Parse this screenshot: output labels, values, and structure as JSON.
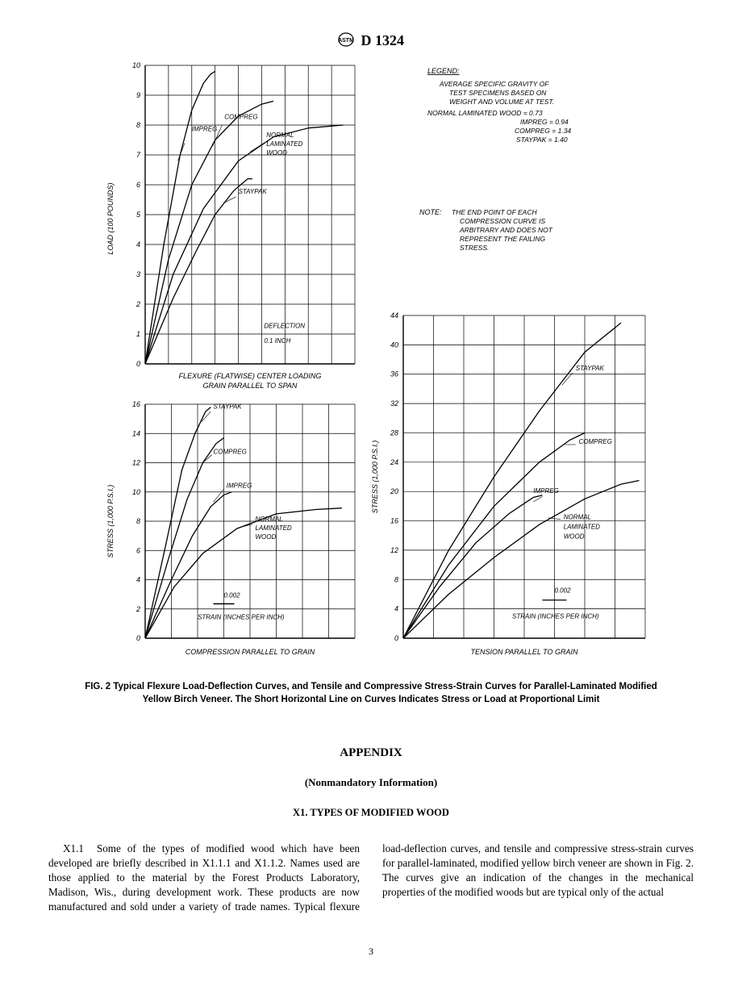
{
  "header": {
    "standard_code": "D 1324"
  },
  "figure": {
    "caption": "FIG. 2 Typical Flexure Load-Deflection Curves, and Tensile and Compressive Stress-Strain Curves for Parallel-Laminated Modified Yellow Birch Veneer. The Short Horizontal Line on Curves Indicates Stress or Load at Proportional Limit",
    "legend": {
      "title": "LEGEND:",
      "line1": "AVERAGE SPECIFIC GRAVITY OF",
      "line2": "TEST SPECIMENS BASED ON",
      "line3": "WEIGHT AND VOLUME AT TEST.",
      "items": [
        "NORMAL LAMINATED WOOD = 0.73",
        "IMPREG = 0.94",
        "COMPREG = 1.34",
        "STAYPAK = 1.40"
      ]
    },
    "note": {
      "label": "NOTE:",
      "text1": "THE END POINT OF EACH",
      "text2": "COMPRESSION CURVE IS",
      "text3": "ARBITRARY AND DOES NOT",
      "text4": "REPRESENT THE FAILING",
      "text5": "STRESS."
    },
    "chart1": {
      "type": "line",
      "title": "FLEXURE (FLATWISE) CENTER LOADING",
      "subtitle": "GRAIN PARALLEL TO SPAN",
      "xlabel": "DEFLECTION",
      "xunit": "0.1 INCH",
      "ylabel": "LOAD (100 POUNDS)",
      "xlim": [
        0,
        9
      ],
      "ylim": [
        0,
        10
      ],
      "xtick_step": 1,
      "ytick_step": 1,
      "curve_labels": [
        "IMPREG",
        "COMPREG",
        "NORMAL LAMINATED WOOD",
        "STAYPAK"
      ],
      "curves": {
        "impreg": {
          "x": [
            0,
            0.8,
            1.5,
            2.0,
            2.5,
            2.8,
            3.0
          ],
          "y": [
            0,
            4.0,
            7.0,
            8.5,
            9.4,
            9.7,
            9.8
          ]
        },
        "compreg": {
          "x": [
            0,
            1.0,
            2.0,
            3.0,
            4.0,
            5.0,
            5.5
          ],
          "y": [
            0,
            3.5,
            6.0,
            7.5,
            8.3,
            8.7,
            8.8
          ]
        },
        "normal": {
          "x": [
            0,
            1.2,
            2.5,
            4.0,
            5.5,
            7.0,
            8.5
          ],
          "y": [
            0,
            3.0,
            5.2,
            6.8,
            7.6,
            7.9,
            8.0
          ]
        },
        "staypak": {
          "x": [
            0,
            1.2,
            2.2,
            3.0,
            3.8,
            4.4,
            4.6
          ],
          "y": [
            0,
            2.2,
            3.8,
            5.0,
            5.8,
            6.2,
            6.2
          ]
        }
      },
      "stroke": "#000000",
      "grid_color": "#000000"
    },
    "chart2": {
      "type": "line",
      "title": "COMPRESSION PARALLEL TO GRAIN",
      "xlabel": "STRAIN (INCHES PER INCH)",
      "xmarker": "0.002",
      "ylabel": "STRESS (1,000 P.S.I.)",
      "xlim": [
        0,
        8
      ],
      "ylim": [
        0,
        16
      ],
      "xtick_step": 1,
      "ytick_step": 2,
      "curve_labels": [
        "STAYPAK",
        "COMPREG",
        "IMPREG",
        "NORMAL LAMINATED WOOD"
      ],
      "curves": {
        "staypak": {
          "x": [
            0,
            0.8,
            1.4,
            1.9,
            2.3,
            2.5
          ],
          "y": [
            0,
            6.5,
            11.5,
            14.0,
            15.5,
            15.8
          ]
        },
        "compreg": {
          "x": [
            0,
            0.9,
            1.6,
            2.2,
            2.7,
            3.0
          ],
          "y": [
            0,
            5.5,
            9.5,
            12.0,
            13.3,
            13.7
          ]
        },
        "impreg": {
          "x": [
            0,
            1.0,
            1.8,
            2.5,
            3.0,
            3.3
          ],
          "y": [
            0,
            4.0,
            7.0,
            9.0,
            9.8,
            10.0
          ]
        },
        "normal": {
          "x": [
            0,
            1.1,
            2.2,
            3.5,
            5.0,
            6.5,
            7.5
          ],
          "y": [
            0,
            3.5,
            5.8,
            7.5,
            8.5,
            8.8,
            8.9
          ]
        }
      },
      "stroke": "#000000",
      "grid_color": "#000000"
    },
    "chart3": {
      "type": "line",
      "title": "TENSION PARALLEL TO GRAIN",
      "xlabel": "STRAIN (INCHES PER INCH)",
      "xmarker": "0.002",
      "ylabel": "STRESS (1,000 P.S.I.)",
      "xlim": [
        0,
        8
      ],
      "ylim": [
        0,
        44
      ],
      "xtick_step": 1,
      "ytick_step": 4,
      "curve_labels": [
        "STAYPAK",
        "COMPREG",
        "IMPREG",
        "NORMAL LAMINATED WOOD"
      ],
      "curves": {
        "staypak": {
          "x": [
            0,
            1.5,
            3.0,
            4.5,
            6.0,
            7.2
          ],
          "y": [
            0,
            12,
            22,
            31,
            39,
            43
          ]
        },
        "compreg": {
          "x": [
            0,
            1.5,
            3.0,
            4.5,
            5.5,
            6.0
          ],
          "y": [
            0,
            10,
            18,
            24,
            27,
            28
          ]
        },
        "impreg": {
          "x": [
            0,
            1.2,
            2.4,
            3.5,
            4.3,
            4.6
          ],
          "y": [
            0,
            7,
            13,
            17,
            19.2,
            19.5
          ]
        },
        "normal": {
          "x": [
            0,
            1.5,
            3.0,
            4.5,
            6.0,
            7.2,
            7.8
          ],
          "y": [
            0,
            6,
            11,
            15.5,
            19,
            21,
            21.5
          ]
        }
      },
      "stroke": "#000000",
      "grid_color": "#000000"
    }
  },
  "appendix": {
    "title": "APPENDIX",
    "subtitle": "(Nonmandatory Information)",
    "section": "X1.   TYPES OF MODIFIED WOOD",
    "para_lead": "X1.1",
    "para_body": "Some of the types of modified wood which have been developed are briefly described in X1.1.1 and X1.1.2. Names used are those applied to the material by the Forest Products Laboratory, Madison, Wis., during development work. These products are now manufactured and sold under a variety of trade names. Typical flexure load-deflection curves, and tensile and compressive stress-strain curves for parallel-laminated, modified yellow birch veneer are shown in Fig. 2. The curves give an indication of the changes in the mechanical properties of the modified woods but are typical only of the actual"
  },
  "page_number": "3",
  "colors": {
    "text": "#000000",
    "background": "#ffffff"
  }
}
